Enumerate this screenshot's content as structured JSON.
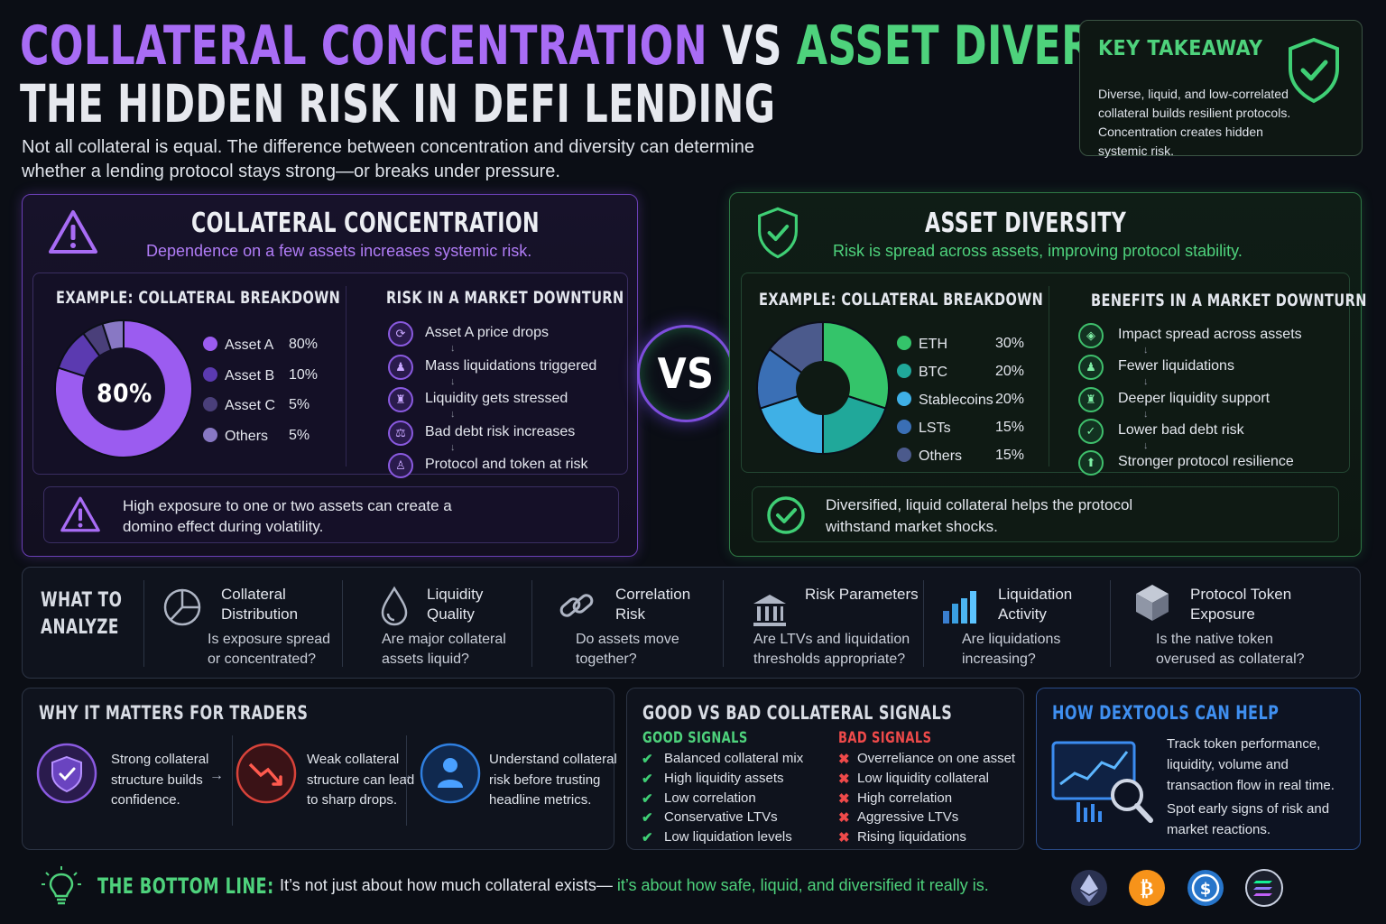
{
  "title": {
    "part1": "COLLATERAL CONCENTRATION",
    "vs": "VS",
    "part2": "ASSET DIVERSITY:",
    "line2": "THE HIDDEN RISK IN DEFI LENDING"
  },
  "intro": "Not all collateral is equal. The difference between concentration and diversity can determine whether a lending protocol stays strong—or breaks under pressure.",
  "key_takeaway": {
    "title": "KEY TAKEAWAY",
    "body": "Diverse, liquid, and low-correlated collateral builds resilient protocols. Concentration creates hidden systemic risk."
  },
  "concentration": {
    "title": "COLLATERAL CONCENTRATION",
    "subtitle": "Dependence on a few assets increases systemic risk.",
    "breakdown_title": "EXAMPLE: COLLATERAL BREAKDOWN",
    "center_label": "80%",
    "legend": [
      {
        "name": "Asset A",
        "value": "80%",
        "color": "#9b5cf0"
      },
      {
        "name": "Asset B",
        "value": "10%",
        "color": "#5b3ab0"
      },
      {
        "name": "Asset C",
        "value": "5%",
        "color": "#4a3f7a"
      },
      {
        "name": "Others",
        "value": "5%",
        "color": "#8878c4"
      }
    ],
    "downturn_title": "RISK IN A MARKET DOWNTURN",
    "steps": [
      "Asset A price drops",
      "Mass liquidations triggered",
      "Liquidity gets stressed",
      "Bad debt risk increases",
      "Protocol and token at risk"
    ],
    "warning": "High exposure to one or two assets can create a domino effect during volatility."
  },
  "vs_label": "VS",
  "diversity": {
    "title": "ASSET DIVERSITY",
    "subtitle": "Risk is spread across assets, improving protocol stability.",
    "breakdown_title": "EXAMPLE: COLLATERAL BREAKDOWN",
    "legend": [
      {
        "name": "ETH",
        "value": "30%",
        "color": "#34c46a"
      },
      {
        "name": "BTC",
        "value": "20%",
        "color": "#20a89a"
      },
      {
        "name": "Stablecoins",
        "value": "20%",
        "color": "#3fb0e6"
      },
      {
        "name": "LSTs",
        "value": "15%",
        "color": "#3a6fb5"
      },
      {
        "name": "Others",
        "value": "15%",
        "color": "#4b5a8c"
      }
    ],
    "downturn_title": "BENEFITS IN A MARKET DOWNTURN",
    "steps": [
      "Impact spread across assets",
      "Fewer liquidations",
      "Deeper liquidity support",
      "Lower bad debt risk",
      "Stronger protocol resilience"
    ],
    "note": "Diversified, liquid collateral helps the protocol withstand market shocks."
  },
  "analyze": {
    "title_line1": "WHAT TO",
    "title_line2": "ANALYZE",
    "items": [
      {
        "title1": "Collateral",
        "title2": "Distribution",
        "q1": "Is exposure spread",
        "q2": "or concentrated?"
      },
      {
        "title1": "Liquidity",
        "title2": "Quality",
        "q1": "Are major collateral",
        "q2": "assets liquid?"
      },
      {
        "title1": "Correlation",
        "title2": "Risk",
        "q1": "Do assets move",
        "q2": "together?"
      },
      {
        "title1": "Risk Parameters",
        "title2": "",
        "q1": "Are LTVs and liquidation",
        "q2": "thresholds appropriate?"
      },
      {
        "title1": "Liquidation",
        "title2": "Activity",
        "q1": "Are liquidations",
        "q2": "increasing?"
      },
      {
        "title1": "Protocol Token",
        "title2": "Exposure",
        "q1": "Is the native token",
        "q2": "overused as collateral?"
      }
    ]
  },
  "why": {
    "title": "WHY IT MATTERS FOR TRADERS",
    "items": [
      {
        "l1": "Strong collateral",
        "l2": "structure builds",
        "l3": "confidence."
      },
      {
        "l1": "Weak collateral",
        "l2": "structure can lead",
        "l3": "to sharp drops."
      },
      {
        "l1": "Understand collateral",
        "l2": "risk before trusting",
        "l3": "headline metrics."
      }
    ]
  },
  "signals": {
    "title": "GOOD VS BAD COLLATERAL SIGNALS",
    "good_title": "GOOD SIGNALS",
    "bad_title": "BAD SIGNALS",
    "good": [
      "Balanced collateral mix",
      "High liquidity assets",
      "Low correlation",
      "Conservative LTVs",
      "Low liquidation levels"
    ],
    "bad": [
      "Overreliance on one asset",
      "Low liquidity collateral",
      "High correlation",
      "Aggressive LTVs",
      "Rising liquidations"
    ]
  },
  "dextools": {
    "title": "HOW DEXTOOLS CAN HELP",
    "p1": [
      "Track token performance,",
      "liquidity, volume and",
      "transaction flow in real time."
    ],
    "p2": [
      "Spot early signs of risk and",
      "market reactions."
    ]
  },
  "bottom": {
    "label": "THE BOTTOM LINE:",
    "text_plain": "It’s not just about how much collateral exists—",
    "text_green": " it’s about how safe, liquid, and diversified it really is."
  },
  "chart_data": [
    {
      "type": "pie",
      "title": "EXAMPLE: COLLATERAL BREAKDOWN",
      "categories": [
        "Asset A",
        "Asset B",
        "Asset C",
        "Others"
      ],
      "values": [
        80,
        10,
        5,
        5
      ]
    },
    {
      "type": "pie",
      "title": "EXAMPLE: COLLATERAL BREAKDOWN",
      "categories": [
        "ETH",
        "BTC",
        "Stablecoins",
        "LSTs",
        "Others"
      ],
      "values": [
        30,
        20,
        20,
        15,
        15
      ]
    }
  ]
}
